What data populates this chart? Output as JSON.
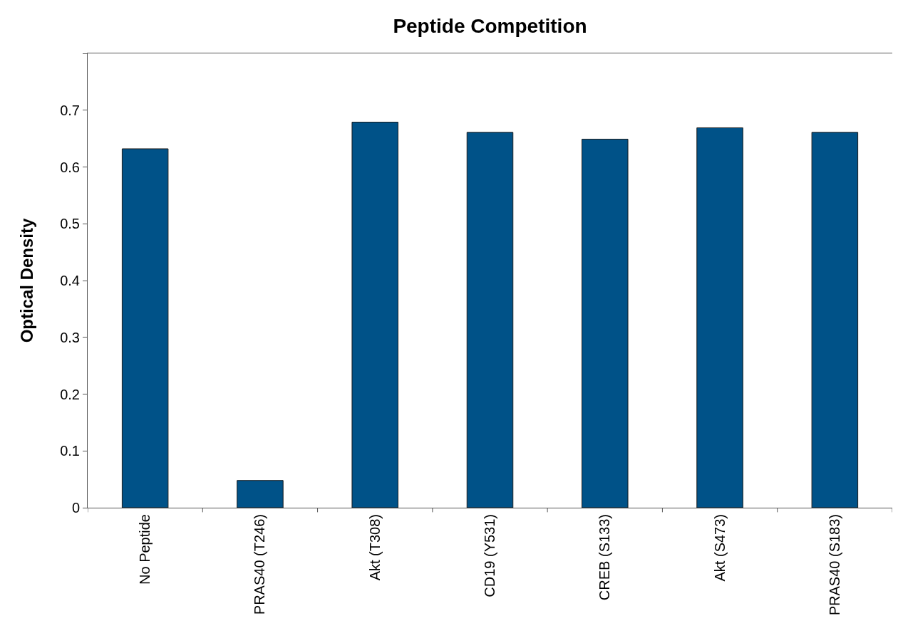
{
  "chart_data": {
    "type": "bar",
    "title": "Peptide Competition",
    "ylabel": "Optical Density",
    "categories": [
      "No Peptide",
      "PRAS40 (T246)",
      "Akt (T308)",
      "CD19 (Y531)",
      "CREB (S133)",
      "Akt (S473)",
      "PRAS40 (S183)"
    ],
    "values": [
      0.632,
      0.048,
      0.679,
      0.661,
      0.649,
      0.669,
      0.661
    ],
    "color": "#005288",
    "ylim": [
      0,
      0.8
    ],
    "yticks": [
      0,
      0.1,
      0.2,
      0.3,
      0.4,
      0.5,
      0.6,
      0.7,
      {
        "value": 0.8,
        "label": null
      }
    ],
    "grid": false,
    "legend": false
  }
}
